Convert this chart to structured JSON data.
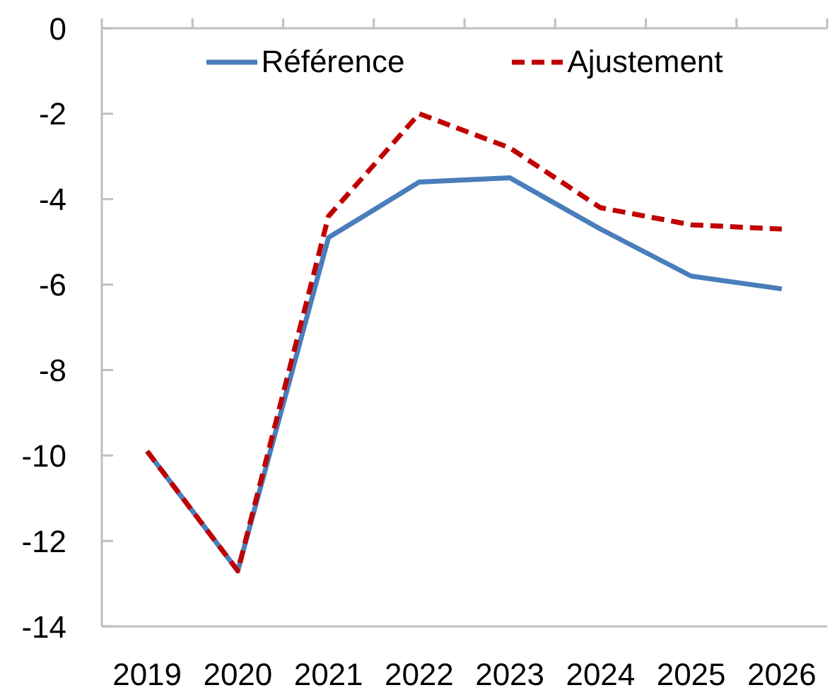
{
  "chart_data": {
    "type": "line",
    "categories": [
      "2019",
      "2020",
      "2021",
      "2022",
      "2023",
      "2024",
      "2025",
      "2026"
    ],
    "series": [
      {
        "name": "Référence",
        "color": "#4a7ebb",
        "line_style": "solid",
        "values": [
          -9.9,
          -12.7,
          -4.9,
          -3.6,
          -3.5,
          -4.7,
          -5.8,
          -6.1
        ]
      },
      {
        "name": "Ajustement",
        "color": "#c00000",
        "line_style": "dashed",
        "values": [
          -9.9,
          -12.7,
          -4.4,
          -2.0,
          -2.8,
          -4.2,
          -4.6,
          -4.7
        ]
      }
    ],
    "ylim": [
      -14,
      0
    ],
    "yticks": [
      -14,
      -12,
      -10,
      -8,
      -6,
      -4,
      -2,
      0
    ],
    "legend": "top",
    "marker": "none"
  }
}
